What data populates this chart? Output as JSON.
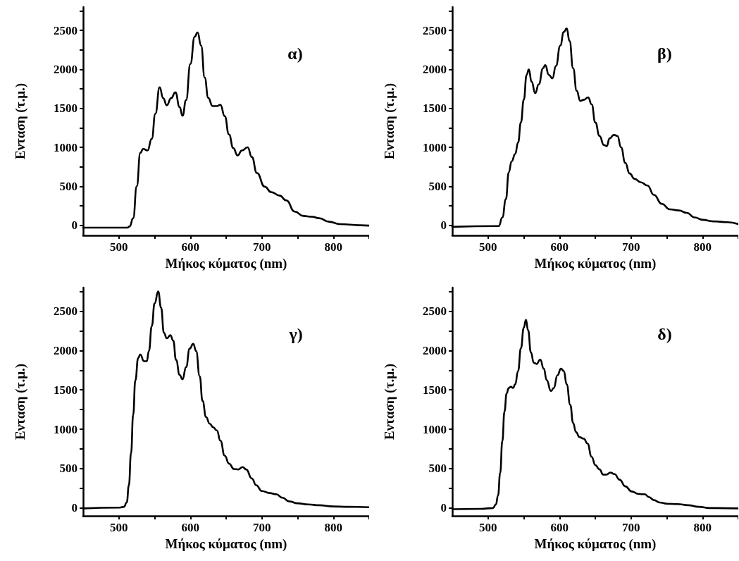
{
  "chart_data": [
    {
      "type": "line",
      "xlabel": "Μήκος κύματος (nm)",
      "ylabel": "Ενταση (τ.μ.)",
      "annotations": [
        "α)"
      ],
      "color": "#000000",
      "marker": "none",
      "xlim": [
        450,
        850
      ],
      "ylim": [
        -130,
        2800
      ],
      "xticks": [
        500,
        {
          "value": 550,
          "label": null
        },
        600,
        {
          "value": 650,
          "label": null
        },
        700,
        {
          "value": 750,
          "label": null
        },
        800,
        {
          "value": 850,
          "label": null
        }
      ],
      "yticks": [
        0,
        {
          "value": 250,
          "label": null
        },
        500,
        {
          "value": 750,
          "label": null
        },
        1000,
        {
          "value": 1250,
          "label": null
        },
        1500,
        {
          "value": 1750,
          "label": null
        },
        2000,
        {
          "value": 2250,
          "label": null
        },
        2500,
        {
          "value": 2750,
          "label": null
        }
      ],
      "x": [
        450,
        512,
        515,
        520,
        525,
        530,
        534,
        540,
        546,
        551,
        557,
        562,
        567,
        573,
        579,
        585,
        589,
        594,
        600,
        606,
        610,
        615,
        620,
        625,
        631,
        637,
        642,
        648,
        654,
        660,
        666,
        672,
        680,
        686,
        693,
        704,
        713,
        725,
        734,
        746,
        758,
        770,
        780,
        794,
        809,
        838,
        850
      ],
      "values": [
        -30,
        -30,
        -15,
        90,
        500,
        930,
        980,
        960,
        1110,
        1430,
        1770,
        1630,
        1540,
        1630,
        1705,
        1515,
        1405,
        1605,
        2070,
        2420,
        2475,
        2305,
        1895,
        1635,
        1530,
        1530,
        1545,
        1400,
        1165,
        990,
        895,
        960,
        1000,
        875,
        670,
        495,
        425,
        380,
        320,
        175,
        120,
        110,
        90,
        45,
        15,
        0,
        -5
      ]
    },
    {
      "type": "line",
      "xlabel": "Μήκος κύματος (nm)",
      "ylabel": "Ενταση (τ.μ.)",
      "annotations": [
        "β)"
      ],
      "color": "#000000",
      "marker": "none",
      "xlim": [
        450,
        850
      ],
      "ylim": [
        -130,
        2800
      ],
      "xticks": [
        500,
        {
          "value": 550,
          "label": null
        },
        600,
        {
          "value": 650,
          "label": null
        },
        700,
        {
          "value": 750,
          "label": null
        },
        800,
        {
          "value": 850,
          "label": null
        }
      ],
      "yticks": [
        0,
        {
          "value": 250,
          "label": null
        },
        500,
        {
          "value": 750,
          "label": null
        },
        1000,
        {
          "value": 1250,
          "label": null
        },
        1500,
        {
          "value": 1750,
          "label": null
        },
        2000,
        {
          "value": 2250,
          "label": null
        },
        2500,
        {
          "value": 2750,
          "label": null
        }
      ],
      "x": [
        450,
        515,
        520,
        525,
        529,
        533,
        538,
        542,
        546,
        550,
        554,
        557,
        561,
        566,
        571,
        577,
        580,
        585,
        590,
        595,
        601,
        606,
        610,
        614,
        619,
        624,
        629,
        634,
        640,
        645,
        650,
        656,
        662,
        666,
        670,
        676,
        681,
        686,
        692,
        698,
        705,
        714,
        723,
        732,
        743,
        754,
        767,
        778,
        789,
        800,
        815,
        835,
        850
      ],
      "values": [
        -20,
        -10,
        100,
        335,
        680,
        820,
        915,
        1060,
        1320,
        1610,
        1930,
        2000,
        1840,
        1695,
        1810,
        2015,
        2055,
        1930,
        1885,
        2045,
        2305,
        2480,
        2525,
        2365,
        2015,
        1725,
        1595,
        1610,
        1640,
        1550,
        1320,
        1145,
        1030,
        1015,
        1115,
        1160,
        1145,
        1000,
        800,
        665,
        595,
        550,
        510,
        390,
        275,
        205,
        190,
        160,
        100,
        70,
        50,
        40,
        15
      ]
    },
    {
      "type": "line",
      "xlabel": "Μήκος κύματος (nm)",
      "ylabel": "Ενταση (τ.μ.)",
      "annotations": [
        "γ)"
      ],
      "color": "#000000",
      "marker": "none",
      "xlim": [
        450,
        850
      ],
      "ylim": [
        -100,
        2800
      ],
      "xticks": [
        500,
        {
          "value": 550,
          "label": null
        },
        600,
        {
          "value": 650,
          "label": null
        },
        700,
        {
          "value": 750,
          "label": null
        },
        800,
        {
          "value": 850,
          "label": null
        }
      ],
      "yticks": [
        0,
        {
          "value": 250,
          "label": null
        },
        500,
        {
          "value": 750,
          "label": null
        },
        1000,
        {
          "value": 1250,
          "label": null
        },
        1500,
        {
          "value": 1750,
          "label": null
        },
        2000,
        {
          "value": 2250,
          "label": null
        },
        2500,
        {
          "value": 2750,
          "label": null
        }
      ],
      "x": [
        450,
        500,
        507,
        511,
        514,
        517,
        520,
        523,
        527,
        530,
        535,
        539,
        542,
        546,
        550,
        555,
        559,
        563,
        567,
        572,
        576,
        580,
        585,
        589,
        594,
        599,
        604,
        608,
        613,
        617,
        622,
        627,
        632,
        637,
        642,
        648,
        654,
        661,
        667,
        673,
        678,
        686,
        692,
        700,
        711,
        720,
        729,
        738,
        750,
        765,
        780,
        800,
        820,
        850
      ],
      "values": [
        -5,
        5,
        15,
        70,
        290,
        695,
        1185,
        1620,
        1905,
        1950,
        1865,
        1865,
        1995,
        2310,
        2600,
        2750,
        2545,
        2225,
        2155,
        2195,
        2125,
        1880,
        1690,
        1635,
        1790,
        2025,
        2085,
        1995,
        1675,
        1360,
        1155,
        1070,
        1025,
        985,
        855,
        665,
        565,
        495,
        490,
        520,
        490,
        375,
        290,
        215,
        190,
        175,
        130,
        85,
        60,
        45,
        35,
        20,
        15,
        10
      ]
    },
    {
      "type": "line",
      "xlabel": "Μήκος κύματος (nm)",
      "ylabel": "Ενταση (τ.μ.)",
      "annotations": [
        "δ)"
      ],
      "color": "#000000",
      "marker": "none",
      "xlim": [
        450,
        850
      ],
      "ylim": [
        -100,
        2800
      ],
      "xticks": [
        500,
        {
          "value": 550,
          "label": null
        },
        600,
        {
          "value": 650,
          "label": null
        },
        700,
        {
          "value": 750,
          "label": null
        },
        800,
        {
          "value": 850,
          "label": null
        }
      ],
      "yticks": [
        0,
        {
          "value": 250,
          "label": null
        },
        500,
        {
          "value": 750,
          "label": null
        },
        1000,
        {
          "value": 1250,
          "label": null
        },
        1500,
        {
          "value": 1750,
          "label": null
        },
        2000,
        {
          "value": 2250,
          "label": null
        },
        2500,
        {
          "value": 2750,
          "label": null
        }
      ],
      "x": [
        450,
        490,
        507,
        511,
        514,
        517,
        520,
        523,
        526,
        529,
        532,
        535,
        538,
        542,
        546,
        550,
        553,
        556,
        560,
        564,
        568,
        573,
        578,
        582,
        588,
        592,
        597,
        602,
        606,
        610,
        615,
        619,
        623,
        628,
        634,
        639,
        645,
        650,
        656,
        661,
        666,
        671,
        677,
        684,
        692,
        701,
        710,
        716,
        719,
        725,
        732,
        740,
        750,
        765,
        780,
        795,
        810,
        850
      ],
      "values": [
        -15,
        -10,
        0,
        45,
        160,
        445,
        850,
        1225,
        1455,
        1525,
        1540,
        1525,
        1570,
        1740,
        2030,
        2290,
        2390,
        2260,
        1975,
        1845,
        1830,
        1885,
        1770,
        1625,
        1485,
        1525,
        1685,
        1770,
        1740,
        1570,
        1310,
        1080,
        965,
        900,
        880,
        820,
        650,
        545,
        490,
        425,
        425,
        450,
        430,
        360,
        275,
        210,
        180,
        175,
        175,
        140,
        100,
        70,
        55,
        50,
        35,
        15,
        0,
        -5
      ]
    }
  ]
}
